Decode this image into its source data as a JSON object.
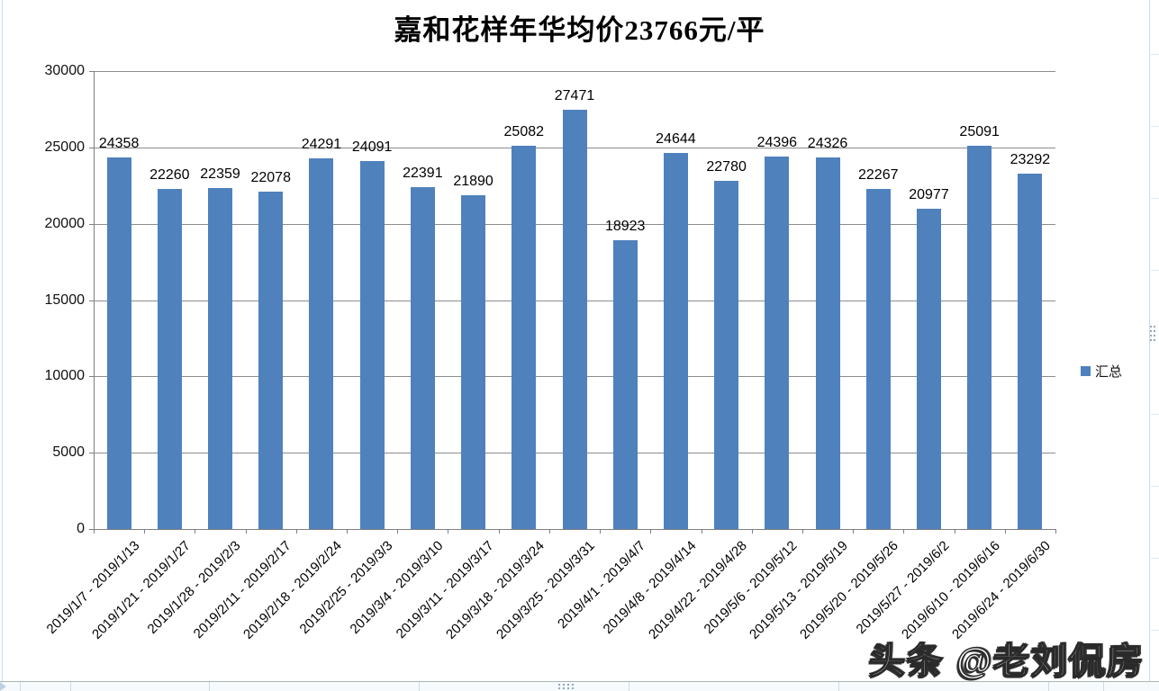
{
  "chart_data": {
    "type": "bar",
    "title": "嘉和花样年华均价23766元/平",
    "categories": [
      "2019/1/7 - 2019/1/13",
      "2019/1/21 - 2019/1/27",
      "2019/1/28 - 2019/2/3",
      "2019/2/11 - 2019/2/17",
      "2019/2/18 - 2019/2/24",
      "2019/2/25 - 2019/3/3",
      "2019/3/4 - 2019/3/10",
      "2019/3/11 - 2019/3/17",
      "2019/3/18 - 2019/3/24",
      "2019/3/25 - 2019/3/31",
      "2019/4/1 - 2019/4/7",
      "2019/4/8 - 2019/4/14",
      "2019/4/22 - 2019/4/28",
      "2019/5/6 - 2019/5/12",
      "2019/5/13 - 2019/5/19",
      "2019/5/20 - 2019/5/26",
      "2019/5/27 - 2019/6/2",
      "2019/6/10 - 2019/6/16",
      "2019/6/24 - 2019/6/30"
    ],
    "series": [
      {
        "name": "汇总",
        "values": [
          24358,
          22260,
          22359,
          22078,
          24291,
          24091,
          22391,
          21890,
          25082,
          27471,
          18923,
          24644,
          22780,
          24396,
          24326,
          22267,
          20977,
          25091,
          23292
        ]
      }
    ],
    "xlabel": "",
    "ylabel": "",
    "ylim": [
      0,
      30000
    ],
    "yticks": [
      0,
      5000,
      10000,
      15000,
      20000,
      25000,
      30000
    ],
    "grid": true,
    "data_labels": true,
    "legend_position": "right",
    "x_label_rotation_deg": 45,
    "colors": {
      "bar": "#4F81BD",
      "gridline": "#8C8C8C",
      "axis": "#7F7F7F",
      "label_text": "#000000",
      "worksheet_gridline": "#C9DCE9"
    }
  },
  "legend": {
    "label": "汇总"
  },
  "watermark": "头条 @老刘侃房"
}
